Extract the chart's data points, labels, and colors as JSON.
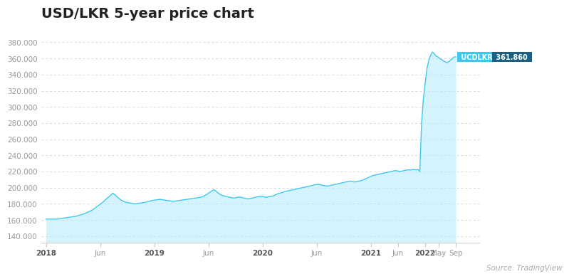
{
  "title": "USD/LKR 5-year price chart",
  "title_fontsize": 14,
  "source_text": "Source: TradingView",
  "ylabel_values": [
    140000,
    160000,
    180000,
    200000,
    220000,
    240000,
    260000,
    280000,
    300000,
    320000,
    340000,
    360000,
    380000
  ],
  "ylim": [
    132000,
    392000
  ],
  "line_color": "#3ec8f0",
  "fill_color": "#b8ecfa",
  "background_color": "#ffffff",
  "grid_color": "#cccccc",
  "annotation_label": "UCDLKR",
  "annotation_value": "361.860",
  "annotation_bg": "#3ec8f0",
  "annotation_val_bg": "#1b6080",
  "x_tick_labels": [
    "2018",
    "Jun",
    "2019",
    "Jun",
    "2020",
    "Jun",
    "2021",
    "Jun",
    "2022",
    "May",
    "Sep"
  ],
  "x_tick_bold": [
    true,
    false,
    true,
    false,
    true,
    false,
    true,
    false,
    true,
    false,
    false
  ],
  "series": [
    [
      0,
      161200
    ],
    [
      3,
      161100
    ],
    [
      6,
      161000
    ],
    [
      9,
      161000
    ],
    [
      12,
      161200
    ],
    [
      15,
      161500
    ],
    [
      18,
      162000
    ],
    [
      21,
      162500
    ],
    [
      24,
      163000
    ],
    [
      27,
      163500
    ],
    [
      30,
      164000
    ],
    [
      33,
      164500
    ],
    [
      36,
      165500
    ],
    [
      39,
      166500
    ],
    [
      42,
      167500
    ],
    [
      45,
      169000
    ],
    [
      48,
      170500
    ],
    [
      51,
      172000
    ],
    [
      54,
      174500
    ],
    [
      57,
      177000
    ],
    [
      60,
      179500
    ],
    [
      63,
      182000
    ],
    [
      66,
      185000
    ],
    [
      69,
      188000
    ],
    [
      72,
      191000
    ],
    [
      74,
      193000
    ],
    [
      76,
      191500
    ],
    [
      78,
      189500
    ],
    [
      80,
      187500
    ],
    [
      82,
      185500
    ],
    [
      84,
      184000
    ],
    [
      86,
      183000
    ],
    [
      88,
      182000
    ],
    [
      90,
      181500
    ],
    [
      93,
      181000
    ],
    [
      96,
      180500
    ],
    [
      99,
      180000
    ],
    [
      102,
      180500
    ],
    [
      105,
      181000
    ],
    [
      108,
      181500
    ],
    [
      111,
      182000
    ],
    [
      114,
      183000
    ],
    [
      117,
      184000
    ],
    [
      120,
      184500
    ],
    [
      123,
      185000
    ],
    [
      126,
      185500
    ],
    [
      129,
      185000
    ],
    [
      132,
      184500
    ],
    [
      135,
      184000
    ],
    [
      138,
      183500
    ],
    [
      141,
      183000
    ],
    [
      144,
      183500
    ],
    [
      147,
      184000
    ],
    [
      150,
      184500
    ],
    [
      153,
      185000
    ],
    [
      156,
      185500
    ],
    [
      159,
      186000
    ],
    [
      162,
      186500
    ],
    [
      165,
      187000
    ],
    [
      168,
      187500
    ],
    [
      171,
      188000
    ],
    [
      174,
      189000
    ],
    [
      177,
      191000
    ],
    [
      180,
      193000
    ],
    [
      183,
      195500
    ],
    [
      186,
      197500
    ],
    [
      188,
      196000
    ],
    [
      190,
      194000
    ],
    [
      192,
      192500
    ],
    [
      194,
      191000
    ],
    [
      196,
      190000
    ],
    [
      198,
      189500
    ],
    [
      200,
      189000
    ],
    [
      202,
      188500
    ],
    [
      204,
      188000
    ],
    [
      206,
      187500
    ],
    [
      208,
      187000
    ],
    [
      210,
      187500
    ],
    [
      212,
      188000
    ],
    [
      214,
      188500
    ],
    [
      216,
      188000
    ],
    [
      218,
      187500
    ],
    [
      220,
      187000
    ],
    [
      222,
      186500
    ],
    [
      224,
      186000
    ],
    [
      226,
      186500
    ],
    [
      228,
      187000
    ],
    [
      230,
      187500
    ],
    [
      232,
      188000
    ],
    [
      234,
      188500
    ],
    [
      236,
      189000
    ],
    [
      238,
      189500
    ],
    [
      240,
      189000
    ],
    [
      242,
      188500
    ],
    [
      244,
      188000
    ],
    [
      246,
      188500
    ],
    [
      248,
      189000
    ],
    [
      250,
      189500
    ],
    [
      252,
      190000
    ],
    [
      254,
      191000
    ],
    [
      256,
      192000
    ],
    [
      258,
      193000
    ],
    [
      260,
      193500
    ],
    [
      262,
      194000
    ],
    [
      264,
      195000
    ],
    [
      266,
      195500
    ],
    [
      268,
      196000
    ],
    [
      270,
      196500
    ],
    [
      272,
      197000
    ],
    [
      274,
      197500
    ],
    [
      276,
      198000
    ],
    [
      278,
      198500
    ],
    [
      280,
      199000
    ],
    [
      282,
      199500
    ],
    [
      284,
      200000
    ],
    [
      286,
      200500
    ],
    [
      288,
      201000
    ],
    [
      290,
      201500
    ],
    [
      292,
      202000
    ],
    [
      294,
      202500
    ],
    [
      296,
      203000
    ],
    [
      298,
      203500
    ],
    [
      300,
      204000
    ],
    [
      302,
      204000
    ],
    [
      304,
      203500
    ],
    [
      306,
      203000
    ],
    [
      308,
      202500
    ],
    [
      310,
      202000
    ],
    [
      312,
      202000
    ],
    [
      314,
      202500
    ],
    [
      316,
      203000
    ],
    [
      318,
      203500
    ],
    [
      320,
      204000
    ],
    [
      322,
      204500
    ],
    [
      324,
      205000
    ],
    [
      326,
      205500
    ],
    [
      328,
      206000
    ],
    [
      330,
      206500
    ],
    [
      332,
      207000
    ],
    [
      334,
      207500
    ],
    [
      336,
      208000
    ],
    [
      338,
      208000
    ],
    [
      340,
      207500
    ],
    [
      342,
      207000
    ],
    [
      344,
      207500
    ],
    [
      346,
      208000
    ],
    [
      348,
      208500
    ],
    [
      350,
      209000
    ],
    [
      352,
      210000
    ],
    [
      354,
      211000
    ],
    [
      356,
      212000
    ],
    [
      358,
      213000
    ],
    [
      360,
      214000
    ],
    [
      362,
      215000
    ],
    [
      364,
      215500
    ],
    [
      366,
      216000
    ],
    [
      368,
      216500
    ],
    [
      370,
      217000
    ],
    [
      372,
      217500
    ],
    [
      374,
      218000
    ],
    [
      376,
      218500
    ],
    [
      378,
      219000
    ],
    [
      380,
      219500
    ],
    [
      382,
      220000
    ],
    [
      384,
      220500
    ],
    [
      386,
      221000
    ],
    [
      388,
      221000
    ],
    [
      390,
      220500
    ],
    [
      392,
      220000
    ],
    [
      394,
      220500
    ],
    [
      396,
      221000
    ],
    [
      398,
      221500
    ],
    [
      400,
      222000
    ],
    [
      402,
      222000
    ],
    [
      404,
      222000
    ],
    [
      406,
      222500
    ],
    [
      408,
      222500
    ],
    [
      410,
      222000
    ],
    [
      412,
      222500
    ],
    [
      414,
      220000
    ],
    [
      416,
      280000
    ],
    [
      418,
      310000
    ],
    [
      420,
      330000
    ],
    [
      422,
      348000
    ],
    [
      424,
      358000
    ],
    [
      426,
      364000
    ],
    [
      428,
      368000
    ],
    [
      430,
      366000
    ],
    [
      432,
      363000
    ],
    [
      434,
      362000
    ],
    [
      436,
      360000
    ],
    [
      438,
      359000
    ],
    [
      440,
      357000
    ],
    [
      442,
      356000
    ],
    [
      444,
      355000
    ],
    [
      446,
      356000
    ],
    [
      448,
      358000
    ],
    [
      450,
      360000
    ],
    [
      452,
      362000
    ],
    [
      454,
      361860
    ]
  ]
}
